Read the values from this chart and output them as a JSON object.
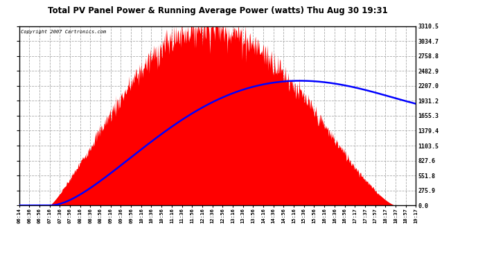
{
  "title": "Total PV Panel Power & Running Average Power (watts) Thu Aug 30 19:31",
  "copyright": "Copyright 2007 Cartronics.com",
  "bg_color": "#ffffff",
  "plot_bg_color": "#ffffff",
  "grid_color": "#aaaaaa",
  "fill_color": "#ff0000",
  "line_color": "#0000ff",
  "y_ticks": [
    0.0,
    275.9,
    551.8,
    827.6,
    1103.5,
    1379.4,
    1655.3,
    1931.2,
    2207.0,
    2482.9,
    2758.8,
    3034.7,
    3310.5
  ],
  "x_tick_labels": [
    "06:14",
    "06:36",
    "06:56",
    "07:16",
    "07:36",
    "07:56",
    "08:16",
    "08:36",
    "08:56",
    "09:16",
    "09:36",
    "09:56",
    "10:16",
    "10:36",
    "10:56",
    "11:16",
    "11:36",
    "11:56",
    "12:16",
    "12:36",
    "12:56",
    "13:16",
    "13:36",
    "13:56",
    "14:16",
    "14:36",
    "14:56",
    "15:16",
    "15:36",
    "15:56",
    "16:16",
    "16:36",
    "16:56",
    "17:17",
    "17:37",
    "17:57",
    "18:17",
    "18:37",
    "18:57",
    "19:17"
  ],
  "ymax": 3310.5,
  "ymin": 0.0,
  "peak_pv": 3310.5,
  "peak_avg": 2300.0
}
